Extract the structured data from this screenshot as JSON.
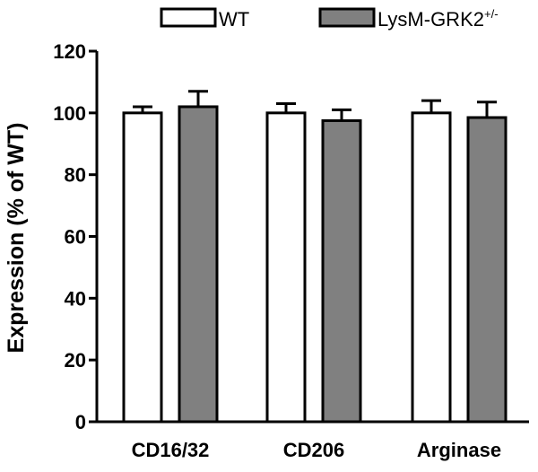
{
  "chart_data": {
    "type": "bar",
    "title": "",
    "xlabel": "",
    "ylabel": "Expression (% of WT)",
    "ylim": [
      0,
      120
    ],
    "yticks": [
      0,
      20,
      40,
      60,
      80,
      100,
      120
    ],
    "categories": [
      "CD16/32",
      "CD206",
      "Arginase"
    ],
    "series": [
      {
        "name": "WT",
        "color": "#ffffff",
        "values": [
          100,
          100,
          100
        ],
        "errors": [
          2,
          3,
          4
        ]
      },
      {
        "name": "LysM-GRK2",
        "name_superscript": "+/-",
        "color": "#808080",
        "values": [
          102,
          97.5,
          98.5
        ],
        "errors": [
          5,
          3.5,
          5
        ]
      }
    ],
    "legend_position": "top",
    "grid": false
  }
}
